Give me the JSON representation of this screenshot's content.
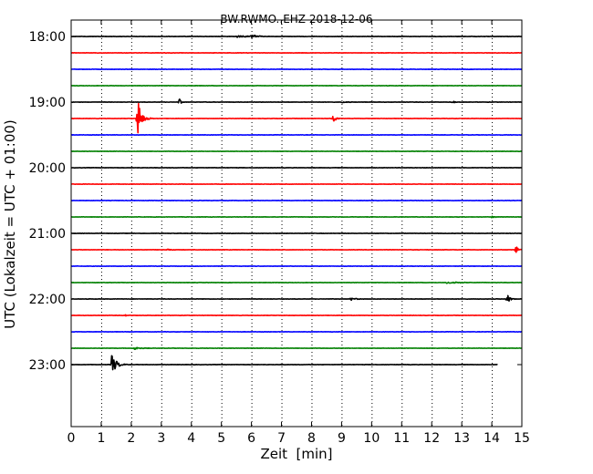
{
  "chart_data": {
    "type": "line",
    "title": "BW.RWMO..EHZ 2018-12-06",
    "xlabel": "Zeit  [min]",
    "ylabel": "UTC (Lokalzeit = UTC + 01:00)",
    "xlim": [
      0,
      15
    ],
    "x_ticks": [
      "0",
      "1",
      "2",
      "3",
      "4",
      "5",
      "6",
      "7",
      "8",
      "9",
      "10",
      "11",
      "12",
      "13",
      "14",
      "15"
    ],
    "y_ticks": [
      "18:00",
      "19:00",
      "20:00",
      "21:00",
      "22:00",
      "23:00"
    ],
    "grid": "vertical dotted",
    "colors": [
      "#000000",
      "#ff0000",
      "#0000ff",
      "#008000"
    ],
    "series": [
      {
        "start": "18:00",
        "color": "#000000",
        "end_min": 15,
        "events": [
          {
            "x": 5.5,
            "amp": 0.06,
            "dur": 1.0
          },
          {
            "x": 6.0,
            "amp": 0.08,
            "dur": 0.5
          }
        ]
      },
      {
        "start": "18:15",
        "color": "#ff0000",
        "end_min": 15,
        "events": []
      },
      {
        "start": "18:30",
        "color": "#0000ff",
        "end_min": 15,
        "events": []
      },
      {
        "start": "18:45",
        "color": "#008000",
        "end_min": 15,
        "events": []
      },
      {
        "start": "19:00",
        "color": "#000000",
        "end_min": 15,
        "events": [
          {
            "x": 3.6,
            "amp": 0.15,
            "dur": 0.15
          },
          {
            "x": 9.0,
            "amp": 0.04,
            "dur": 0.6
          },
          {
            "x": 12.7,
            "amp": 0.08,
            "dur": 0.15
          }
        ]
      },
      {
        "start": "19:15",
        "color": "#ff0000",
        "end_min": 15,
        "events": [
          {
            "x": 2.2,
            "amp": 1.0,
            "dur": 0.35
          },
          {
            "x": 8.7,
            "amp": 0.28,
            "dur": 0.2
          }
        ]
      },
      {
        "start": "19:30",
        "color": "#0000ff",
        "end_min": 15,
        "events": []
      },
      {
        "start": "19:45",
        "color": "#008000",
        "end_min": 15,
        "events": []
      },
      {
        "start": "20:00",
        "color": "#000000",
        "end_min": 15,
        "events": []
      },
      {
        "start": "20:15",
        "color": "#ff0000",
        "end_min": 15,
        "events": []
      },
      {
        "start": "20:30",
        "color": "#0000ff",
        "end_min": 15,
        "events": []
      },
      {
        "start": "20:45",
        "color": "#008000",
        "end_min": 15,
        "events": [
          {
            "x": 14.0,
            "amp": 0.04,
            "dur": 0.3
          }
        ]
      },
      {
        "start": "21:00",
        "color": "#000000",
        "end_min": 15,
        "events": []
      },
      {
        "start": "21:15",
        "color": "#ff0000",
        "end_min": 15,
        "events": [
          {
            "x": 3.2,
            "amp": 0.05,
            "dur": 0.3
          },
          {
            "x": 14.8,
            "amp": 0.2,
            "dur": 0.2
          }
        ]
      },
      {
        "start": "21:30",
        "color": "#0000ff",
        "end_min": 15,
        "events": []
      },
      {
        "start": "21:45",
        "color": "#008000",
        "end_min": 15,
        "events": [
          {
            "x": 12.5,
            "amp": 0.05,
            "dur": 1.2
          }
        ]
      },
      {
        "start": "22:00",
        "color": "#000000",
        "end_min": 15,
        "events": [
          {
            "x": 9.3,
            "amp": 0.06,
            "dur": 0.5
          },
          {
            "x": 14.5,
            "amp": 0.25,
            "dur": 0.25
          }
        ]
      },
      {
        "start": "22:15",
        "color": "#ff0000",
        "end_min": 15,
        "events": [
          {
            "x": 1.8,
            "amp": 0.04,
            "dur": 0.3
          }
        ]
      },
      {
        "start": "22:30",
        "color": "#0000ff",
        "end_min": 15,
        "events": []
      },
      {
        "start": "22:45",
        "color": "#008000",
        "end_min": 15,
        "events": [
          {
            "x": 2.1,
            "amp": 0.07,
            "dur": 0.5
          }
        ]
      },
      {
        "start": "23:00",
        "color": "#000000",
        "end_min": 14.2,
        "events": [
          {
            "x": 1.35,
            "amp": 0.45,
            "dur": 0.4
          }
        ]
      }
    ]
  }
}
